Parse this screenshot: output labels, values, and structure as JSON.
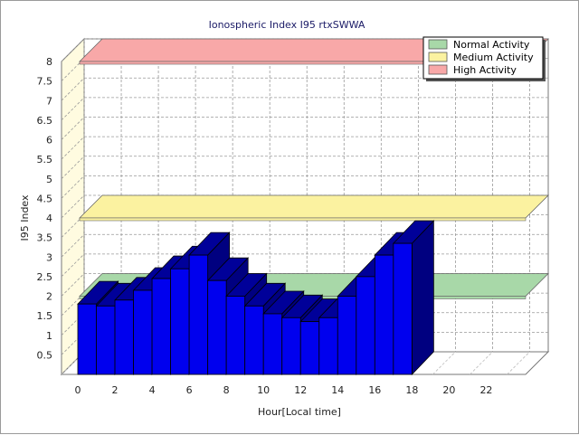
{
  "chart_data": {
    "type": "bar",
    "title": "Ionospheric Index I95 rtxSWWA",
    "xlabel": "Hour[Local time]",
    "ylabel": "I95 Index",
    "ylim": [
      0,
      8
    ],
    "yticks": [
      "0.5",
      "1",
      "1.5",
      "2",
      "2.5",
      "3",
      "3.5",
      "4",
      "4.5",
      "5",
      "5.5",
      "6",
      "6.5",
      "7",
      "7.5",
      "8"
    ],
    "xticks": [
      "0",
      "2",
      "4",
      "6",
      "8",
      "10",
      "12",
      "14",
      "16",
      "18",
      "20",
      "22"
    ],
    "x": [
      0,
      1,
      2,
      3,
      4,
      5,
      6,
      7,
      8,
      9,
      10,
      11,
      12,
      13,
      14,
      15,
      16,
      17
    ],
    "values": [
      1.8,
      1.75,
      1.9,
      2.15,
      2.45,
      2.7,
      3.05,
      2.4,
      2.0,
      1.75,
      1.55,
      1.45,
      1.35,
      1.45,
      2.0,
      2.5,
      3.05,
      3.35
    ],
    "bar_color": "#0000ee",
    "bands": [
      {
        "name": "Normal Activity",
        "level": 2.0,
        "color": "#a8d8a8"
      },
      {
        "name": "Medium Activity",
        "level": 4.0,
        "color": "#fbf2a0"
      },
      {
        "name": "High Activity",
        "level": 8.0,
        "color": "#f8a8a8"
      }
    ],
    "legend_position": "top-right",
    "grid": true
  }
}
